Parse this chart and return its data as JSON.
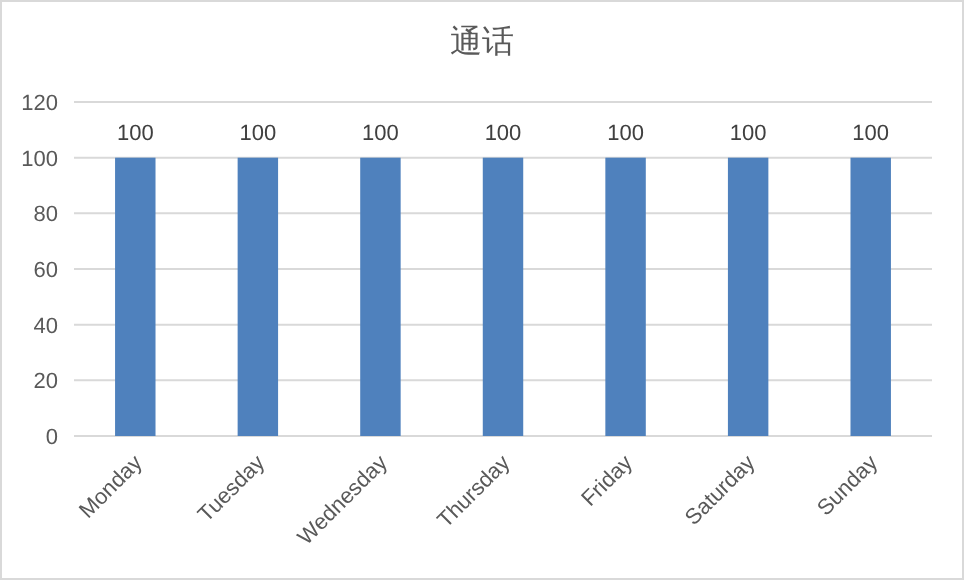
{
  "chart_data": {
    "type": "bar",
    "title": "通话",
    "categories": [
      "Monday",
      "Tuesday",
      "Wednesday",
      "Thursday",
      "Friday",
      "Saturday",
      "Sunday"
    ],
    "values": [
      100,
      100,
      100,
      100,
      100,
      100,
      100
    ],
    "color": "#4f81bd",
    "ylim": [
      0,
      120
    ],
    "yticks": [
      0,
      20,
      40,
      60,
      80,
      100,
      120
    ],
    "grid": "y",
    "data_labels": true
  }
}
